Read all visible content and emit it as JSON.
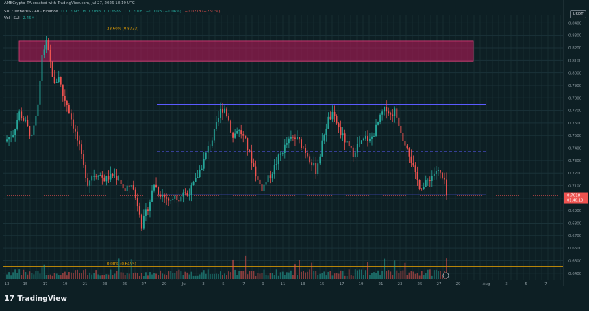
{
  "header": {
    "credit": "AMBCrypto_TA created with TradingView.com, Jul 27, 2026 18:19 UTC",
    "symbol_line": "SUI / TetherUS · 4h · Binance",
    "ohlc": [
      {
        "label": "O",
        "value": "0.7093"
      },
      {
        "label": "H",
        "value": "0.7093"
      },
      {
        "label": "L",
        "value": "0.6989"
      },
      {
        "label": "C",
        "value": "0.7018"
      },
      {
        "label": "",
        "value": "−0.0075 (−1.06%)"
      }
    ],
    "change": "−0.0218 (−2.97%)",
    "vol_line": "Vol · SUI",
    "vol_value": "2.45M"
  },
  "currency": "USDT",
  "brand": "TradingView",
  "chart_data": {
    "type": "candlestick",
    "colors": {
      "up": "#26a69a",
      "down": "#ef5350",
      "background": "#0d1f24",
      "level_lines": "#f0a500",
      "range_lines": "#5b5bff",
      "supply_zone": "#c2185b"
    },
    "y_axis_ticks": [
      "0.8400",
      "0.8300",
      "0.8200",
      "0.8100",
      "0.8000",
      "0.7900",
      "0.7800",
      "0.7700",
      "0.7600",
      "0.7500",
      "0.7400",
      "0.7300",
      "0.7200",
      "0.7100",
      "0.7000",
      "0.6900",
      "0.6800",
      "0.6700",
      "0.6600",
      "0.6500",
      "0.6400"
    ],
    "ylim": [
      0.6355,
      0.8462
    ],
    "x_axis_ticks": [
      "13",
      "15",
      "17",
      "19",
      "21",
      "23",
      "25",
      "27",
      "29",
      "Jul",
      "3",
      "5",
      "7",
      "9",
      "11",
      "13",
      "15",
      "17",
      "19",
      "21",
      "23",
      "25",
      "27",
      "29",
      "Aug",
      "3",
      "5",
      "7"
    ],
    "price_label": {
      "price": "0.7018",
      "countdown": "01:40:10",
      "value": 0.7018
    },
    "fib_levels": [
      {
        "label": "23.60% (0.8333)",
        "value": 0.8333
      },
      {
        "label": "0.00% (0.6455)",
        "value": 0.6455
      }
    ],
    "supply_zone": {
      "from": 0.8095,
      "to": 0.8255
    },
    "range": {
      "high": 0.775,
      "mid": 0.737,
      "low": 0.7025
    },
    "close_path": [
      [
        0,
        0.745
      ],
      [
        4,
        0.752
      ],
      [
        7,
        0.768
      ],
      [
        10,
        0.76
      ],
      [
        13,
        0.748
      ],
      [
        16,
        0.772
      ],
      [
        18,
        0.815
      ],
      [
        20,
        0.824
      ],
      [
        22,
        0.808
      ],
      [
        24,
        0.79
      ],
      [
        26,
        0.798
      ],
      [
        28,
        0.782
      ],
      [
        30,
        0.775
      ],
      [
        33,
        0.758
      ],
      [
        36,
        0.74
      ],
      [
        38,
        0.725
      ],
      [
        40,
        0.712
      ],
      [
        42,
        0.718
      ],
      [
        45,
        0.72
      ],
      [
        48,
        0.715
      ],
      [
        52,
        0.718
      ],
      [
        55,
        0.716
      ],
      [
        58,
        0.705
      ],
      [
        61,
        0.712
      ],
      [
        63,
        0.7
      ],
      [
        65,
        0.69
      ],
      [
        66,
        0.678
      ],
      [
        68,
        0.688
      ],
      [
        70,
        0.698
      ],
      [
        72,
        0.712
      ],
      [
        74,
        0.705
      ],
      [
        76,
        0.702
      ],
      [
        78,
        0.7
      ],
      [
        80,
        0.697
      ],
      [
        82,
        0.703
      ],
      [
        84,
        0.7
      ],
      [
        86,
        0.705
      ],
      [
        88,
        0.702
      ],
      [
        90,
        0.708
      ],
      [
        92,
        0.714
      ],
      [
        94,
        0.722
      ],
      [
        96,
        0.73
      ],
      [
        98,
        0.74
      ],
      [
        100,
        0.747
      ],
      [
        102,
        0.758
      ],
      [
        104,
        0.77
      ],
      [
        106,
        0.772
      ],
      [
        108,
        0.762
      ],
      [
        110,
        0.748
      ],
      [
        112,
        0.755
      ],
      [
        114,
        0.752
      ],
      [
        116,
        0.745
      ],
      [
        118,
        0.735
      ],
      [
        120,
        0.725
      ],
      [
        122,
        0.714
      ],
      [
        124,
        0.708
      ],
      [
        126,
        0.713
      ],
      [
        128,
        0.718
      ],
      [
        130,
        0.725
      ],
      [
        132,
        0.732
      ],
      [
        134,
        0.738
      ],
      [
        136,
        0.744
      ],
      [
        138,
        0.747
      ],
      [
        140,
        0.748
      ],
      [
        142,
        0.745
      ],
      [
        144,
        0.74
      ],
      [
        146,
        0.735
      ],
      [
        148,
        0.728
      ],
      [
        150,
        0.722
      ],
      [
        152,
        0.735
      ],
      [
        154,
        0.752
      ],
      [
        156,
        0.763
      ],
      [
        158,
        0.766
      ],
      [
        160,
        0.76
      ],
      [
        162,
        0.752
      ],
      [
        164,
        0.746
      ],
      [
        166,
        0.74
      ],
      [
        168,
        0.736
      ],
      [
        170,
        0.742
      ],
      [
        172,
        0.744
      ],
      [
        174,
        0.748
      ],
      [
        176,
        0.746
      ],
      [
        178,
        0.752
      ],
      [
        180,
        0.76
      ],
      [
        182,
        0.768
      ],
      [
        184,
        0.772
      ],
      [
        186,
        0.766
      ],
      [
        188,
        0.77
      ],
      [
        190,
        0.76
      ],
      [
        192,
        0.748
      ],
      [
        194,
        0.742
      ],
      [
        196,
        0.73
      ],
      [
        198,
        0.718
      ],
      [
        200,
        0.71
      ],
      [
        202,
        0.709
      ],
      [
        204,
        0.714
      ],
      [
        206,
        0.718
      ],
      [
        208,
        0.722
      ],
      [
        210,
        0.719
      ],
      [
        212,
        0.712
      ],
      [
        213,
        0.7018
      ]
    ]
  }
}
